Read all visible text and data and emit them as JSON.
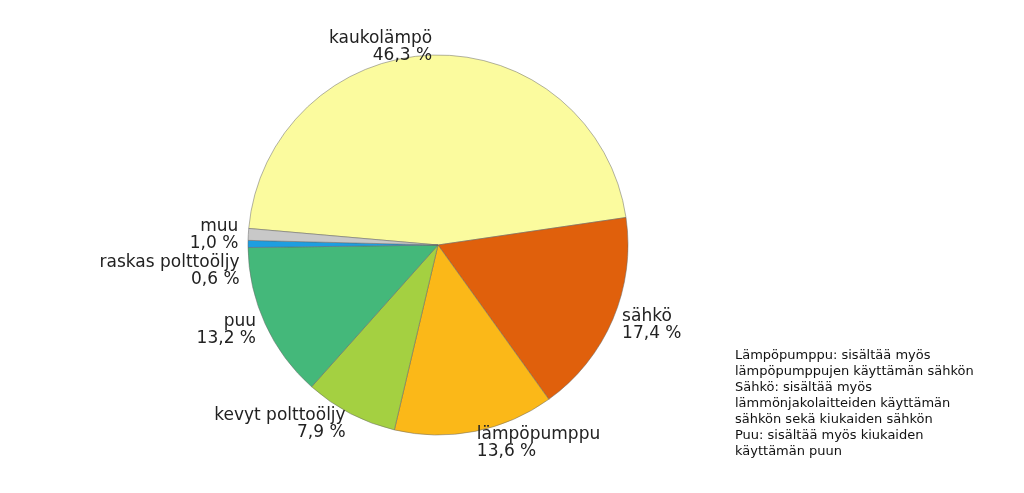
{
  "chart_data": {
    "type": "pie",
    "categories": [
      "kaukolämpö",
      "sähkö",
      "lämpöpumppu",
      "kevyt polttoöljy",
      "puu",
      "raskas polttoöljy",
      "muu"
    ],
    "values": [
      46.3,
      17.4,
      13.6,
      7.9,
      13.2,
      0.6,
      1.0
    ],
    "value_labels": [
      "46,3 %",
      "17,4 %",
      "13,6 %",
      "7,9 %",
      "13,2 %",
      "0,6 %",
      "1,0 %"
    ],
    "colors": [
      "#fbfb9e",
      "#e0600c",
      "#fbb818",
      "#a4d041",
      "#44b87a",
      "#1e9ee0",
      "#c8c8c8"
    ],
    "annotations": [
      "Lämpöpumppu: sisältää myös\nlämpöpumppujen käyttämän sähkön",
      "Sähkö: sisältää myös\nlämmönjakolaitteiden käyttämän\nsähkön sekä kiukaiden sähkön",
      "Puu: sisältää myös kiukaiden\nkäyttämän puun"
    ],
    "legend": false
  }
}
